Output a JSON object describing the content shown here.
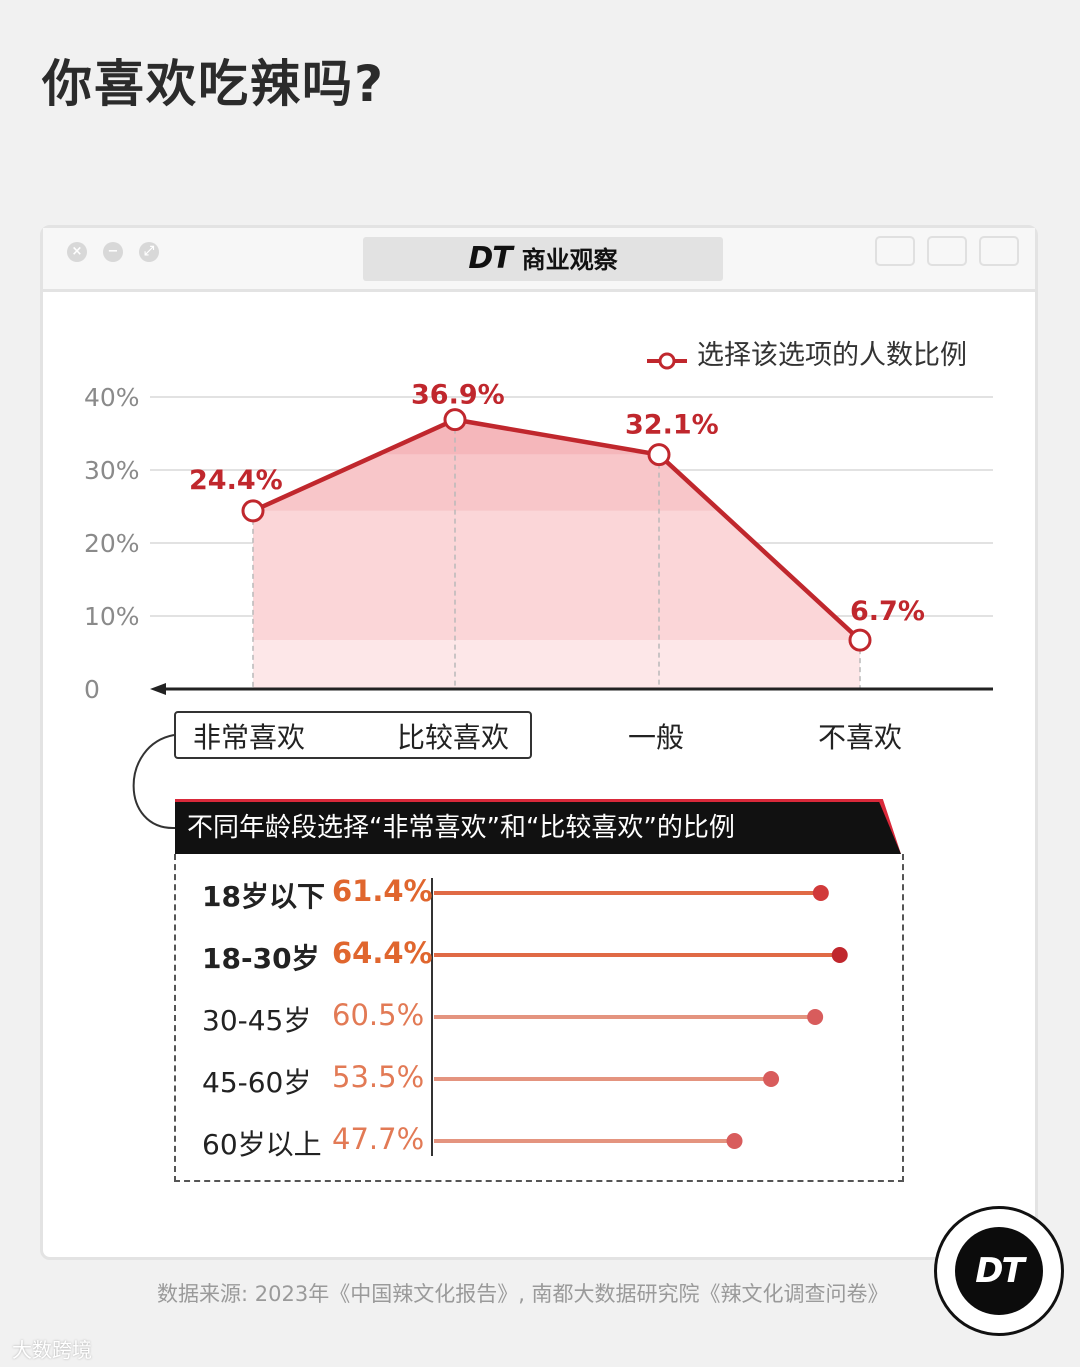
{
  "title": "你喜欢吃辣吗?",
  "brand": {
    "dt": "DT",
    "name": "商业观察"
  },
  "legend_label": "选择该选项的人数比例",
  "colors": {
    "line": "#c0272d",
    "fill_light": "#fbe0e1",
    "fill_mid": "#f7c7c9",
    "bar": "#e06a45",
    "bar_light": "#e0907a",
    "dot": "#c0272d"
  },
  "chart_data": [
    {
      "type": "area",
      "categories": [
        "非常喜欢",
        "比较喜欢",
        "一般",
        "不喜欢"
      ],
      "series": [
        {
          "name": "选择该选项的人数比例",
          "values": [
            24.4,
            36.9,
            32.1,
            6.7
          ]
        }
      ],
      "data_labels": [
        "24.4%",
        "36.9%",
        "32.1%",
        "6.7%"
      ],
      "y_ticks": [
        "0",
        "10%",
        "20%",
        "30%",
        "40%"
      ],
      "ylim": [
        0,
        40
      ],
      "grid": true,
      "legend": "top-right"
    },
    {
      "type": "bar",
      "title": "不同年龄段选择“非常喜欢”和“比较喜欢”的比例",
      "categories": [
        "18岁以下",
        "18-30岁",
        "30-45岁",
        "45-60岁",
        "60岁以上"
      ],
      "values": [
        61.4,
        64.4,
        60.5,
        53.5,
        47.7
      ],
      "data_labels": [
        "61.4%",
        "64.4%",
        "60.5%",
        "53.5%",
        "47.7%"
      ],
      "highlight": [
        true,
        true,
        false,
        false,
        false
      ]
    }
  ],
  "source": "数据来源: 2023年《中国辣文化报告》, 南都大数据研究院《辣文化调查问卷》",
  "footer_logo": "大数跨境"
}
